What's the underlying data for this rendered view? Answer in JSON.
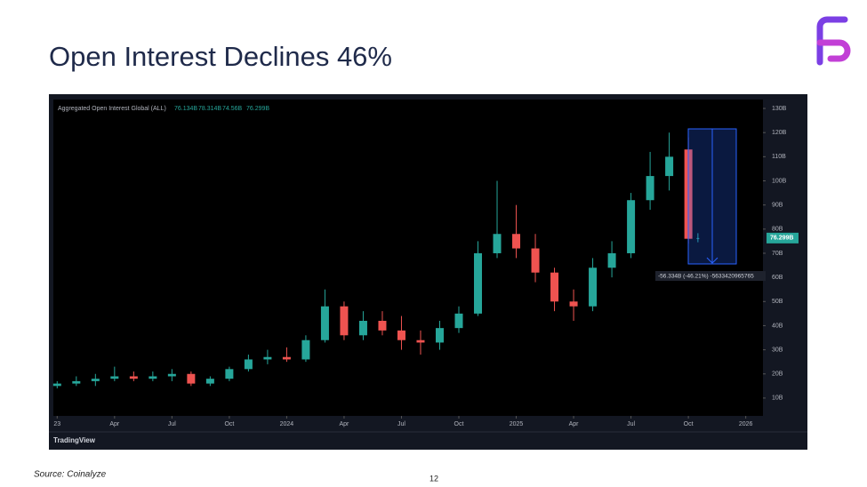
{
  "title": "Open Interest Declines 46%",
  "source": "Source: Coinalyze",
  "page_number": "12",
  "chart_data": {
    "type": "candlestick",
    "series_name": "Aggregated Open Interest Global (ALL)",
    "ohlc_labels": [
      "76.134B",
      "78.314B",
      "74.56B",
      "76.299B"
    ],
    "last_value_label": "76.299B",
    "measure_label": "-56.334B (-46.21%) -5633420965765",
    "branding": "TradingView",
    "up_color": "#26a69a",
    "down_color": "#ef5350",
    "x": [
      0,
      1,
      2,
      3,
      4,
      5,
      6,
      7,
      8,
      9,
      10,
      11,
      12,
      13,
      14,
      15,
      16,
      17,
      18,
      19,
      20,
      21,
      22,
      23,
      24,
      25,
      26,
      27,
      28,
      29,
      30,
      31,
      32,
      33,
      33.5
    ],
    "open": [
      15,
      16,
      17,
      18,
      19,
      18,
      19,
      20,
      16,
      18,
      22,
      26,
      27,
      26,
      34,
      48,
      36,
      42,
      38,
      34,
      33,
      39,
      45,
      70,
      78,
      72,
      62,
      50,
      48,
      64,
      70,
      92,
      102,
      113,
      76.134
    ],
    "high": [
      17,
      19,
      20,
      23,
      21,
      21,
      22,
      21,
      19,
      23,
      28,
      30,
      31,
      36,
      55,
      50,
      46,
      46,
      44,
      38,
      42,
      48,
      75,
      100,
      90,
      78,
      64,
      55,
      68,
      75,
      95,
      112,
      120,
      118,
      78.314
    ],
    "low": [
      14,
      15,
      15,
      17,
      17,
      17,
      17,
      15,
      15,
      17,
      21,
      24,
      25,
      25,
      33,
      34,
      34,
      36,
      30,
      28,
      30,
      37,
      44,
      68,
      68,
      58,
      46,
      42,
      46,
      60,
      68,
      88,
      96,
      74,
      74.56
    ],
    "close": [
      16,
      17,
      18,
      19,
      18,
      19,
      20,
      16,
      18,
      22,
      26,
      27,
      26,
      34,
      48,
      36,
      42,
      38,
      34,
      33,
      39,
      45,
      70,
      78,
      72,
      62,
      50,
      48,
      64,
      70,
      92,
      102,
      110,
      76,
      76.299
    ],
    "xlim": [
      -0.2,
      36.9
    ],
    "xticks": [
      {
        "value": 0,
        "label": "23"
      },
      {
        "value": 3,
        "label": "Apr"
      },
      {
        "value": 6,
        "label": "Jul"
      },
      {
        "value": 9,
        "label": "Oct"
      },
      {
        "value": 12,
        "label": "2024"
      },
      {
        "value": 15,
        "label": "Apr"
      },
      {
        "value": 18,
        "label": "Jul"
      },
      {
        "value": 21,
        "label": "Oct"
      },
      {
        "value": 24,
        "label": "2025"
      },
      {
        "value": 27,
        "label": "Apr"
      },
      {
        "value": 30,
        "label": "Jul"
      },
      {
        "value": 33,
        "label": "Oct"
      },
      {
        "value": 36,
        "label": "2026"
      }
    ],
    "ylim": [
      2.6,
      133.7
    ],
    "yticks": [
      {
        "value": 10,
        "label": "10B"
      },
      {
        "value": 20,
        "label": "20B"
      },
      {
        "value": 30,
        "label": "30B"
      },
      {
        "value": 40,
        "label": "40B"
      },
      {
        "value": 50,
        "label": "50B"
      },
      {
        "value": 60,
        "label": "60B"
      },
      {
        "value": 70,
        "label": "70B"
      },
      {
        "value": 80,
        "label": "80B"
      },
      {
        "value": 90,
        "label": "90B"
      },
      {
        "value": 100,
        "label": "100B"
      },
      {
        "value": 110,
        "label": "110B"
      },
      {
        "value": 120,
        "label": "120B"
      },
      {
        "value": 130,
        "label": "130B"
      }
    ]
  }
}
